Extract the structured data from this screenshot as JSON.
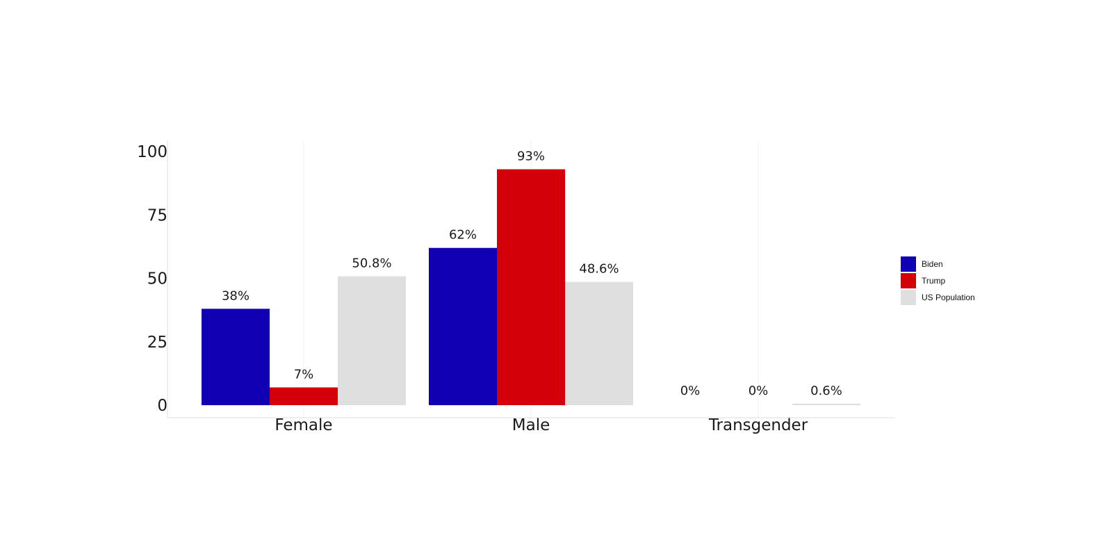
{
  "chart_data": {
    "type": "bar",
    "categories": [
      "Female",
      "Male",
      "Transgender"
    ],
    "series": [
      {
        "name": "Biden",
        "color": "#1100b3",
        "values": [
          38,
          62,
          0
        ],
        "labels": [
          "38%",
          "62%",
          "0%"
        ]
      },
      {
        "name": "Trump",
        "color": "#d40009",
        "values": [
          7,
          93,
          0
        ],
        "labels": [
          "7%",
          "93%",
          "0%"
        ]
      },
      {
        "name": "US Population",
        "color": "#dfdfdf",
        "values": [
          50.8,
          48.6,
          0.6
        ],
        "labels": [
          "50.8%",
          "48.6%",
          "0.6%"
        ]
      }
    ],
    "yticks": [
      0,
      25,
      50,
      75,
      100
    ],
    "ylim": [
      0,
      100
    ],
    "xlabel": "",
    "ylabel": "",
    "title": "",
    "grid": "vertical",
    "legend_position": "right"
  }
}
